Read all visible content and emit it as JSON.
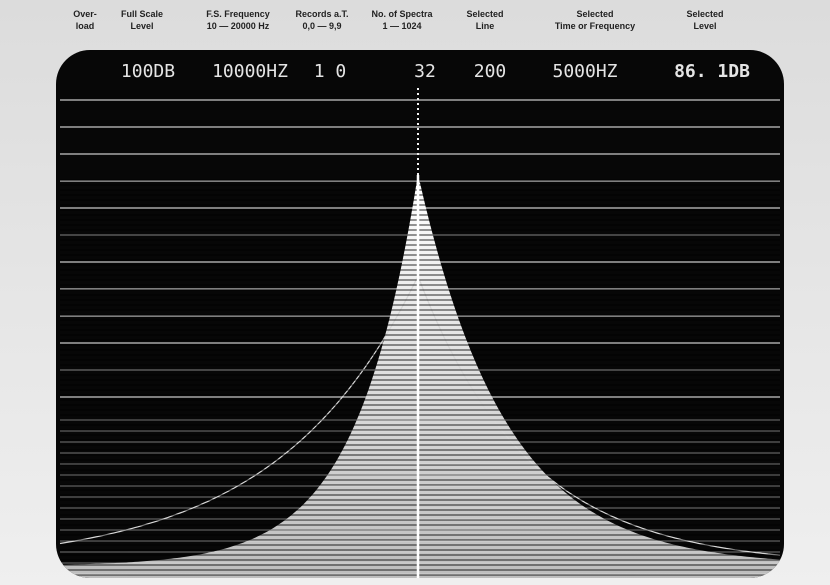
{
  "header": {
    "labels": [
      {
        "line1": "Over-",
        "line2": "load"
      },
      {
        "line1": "Full Scale",
        "line2": "Level"
      },
      {
        "line1": "F.S. Frequency",
        "line2": "10 — 20000 Hz"
      },
      {
        "line1": "Records a.T.",
        "line2": "0,0 — 9,9"
      },
      {
        "line1": "No. of Spectra",
        "line2": "1 — 1024"
      },
      {
        "line1": "Selected",
        "line2": "Line"
      },
      {
        "line1": "Selected",
        "line2": "Time or Frequency"
      },
      {
        "line1": "Selected",
        "line2": "Level"
      }
    ]
  },
  "screen": {
    "readouts": [
      "100DB",
      "10000HZ",
      "1 0",
      "32",
      "200",
      "5000HZ",
      "86. 1DB"
    ]
  }
}
